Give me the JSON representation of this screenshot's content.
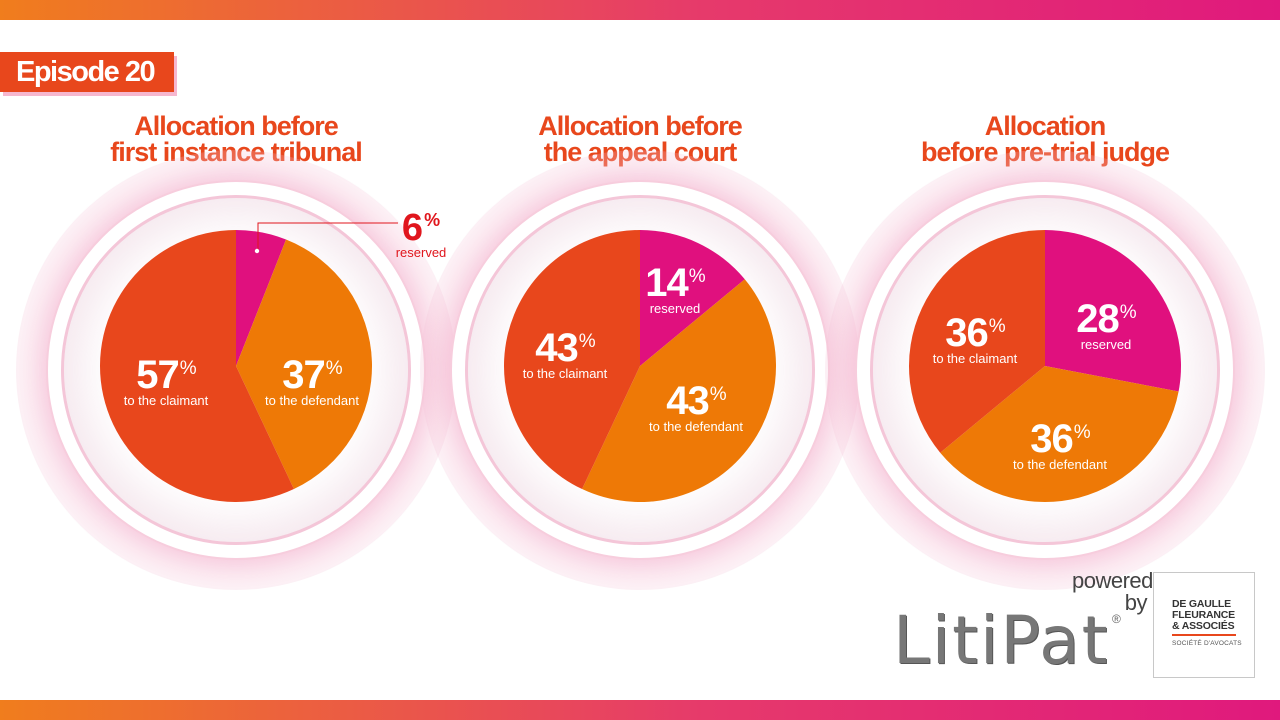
{
  "episode": "Episode 20",
  "colors": {
    "claimant": "#e8471c",
    "defendant": "#ee7906",
    "reserved": "#e0107e",
    "accent": "#e8471c"
  },
  "charts_text": [
    {
      "title_1": "Allocation before",
      "title_2": "first instance tribunal"
    },
    {
      "title_1": "Allocation before",
      "title_2": "the appeal court"
    },
    {
      "title_1": "Allocation",
      "title_2": "before pre-trial judge"
    }
  ],
  "percent_sign": "%",
  "chart_data": [
    {
      "type": "pie",
      "title": "Allocation before first instance tribunal",
      "categories": [
        "reserved",
        "to the defendant",
        "to the claimant"
      ],
      "values": [
        6,
        37,
        57
      ],
      "labels": [
        {
          "value": "6",
          "desc": "reserved"
        },
        {
          "value": "37",
          "desc": "to the defendant"
        },
        {
          "value": "57",
          "desc": "to the claimant"
        }
      ]
    },
    {
      "type": "pie",
      "title": "Allocation before the appeal court",
      "categories": [
        "reserved",
        "to the defendant",
        "to the claimant"
      ],
      "values": [
        14,
        43,
        43
      ],
      "labels": [
        {
          "value": "14",
          "desc": "reserved"
        },
        {
          "value": "43",
          "desc": "to the defendant"
        },
        {
          "value": "43",
          "desc": "to the claimant"
        }
      ]
    },
    {
      "type": "pie",
      "title": "Allocation before pre-trial judge",
      "categories": [
        "reserved",
        "to the defendant",
        "to the claimant"
      ],
      "values": [
        28,
        36,
        36
      ],
      "labels": [
        {
          "value": "28",
          "desc": "reserved"
        },
        {
          "value": "36",
          "desc": "to the defendant"
        },
        {
          "value": "36",
          "desc": "to the claimant"
        }
      ]
    }
  ],
  "footer": {
    "powered": "powered",
    "by": "by",
    "litipat": "LitiPat",
    "registered": "®",
    "firm_line1": "DE GAULLE",
    "firm_line2": "FLEURANCE",
    "firm_line3": "& ASSOCIÉS",
    "firm_sub": "SOCIÉTÉ D'AVOCATS"
  }
}
